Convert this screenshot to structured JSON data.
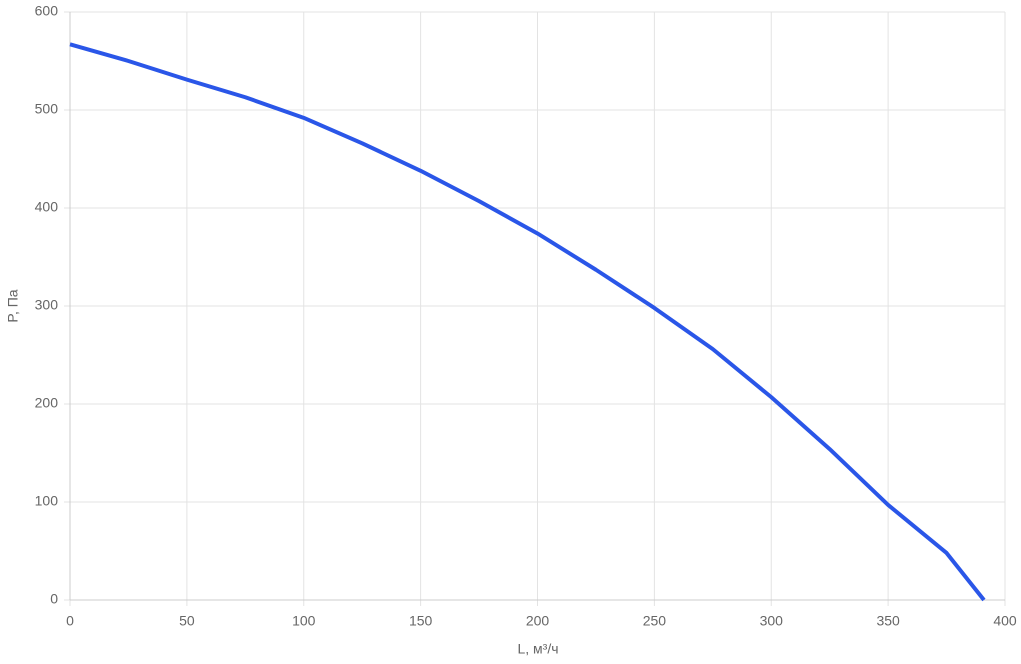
{
  "chart_data": {
    "type": "line",
    "x_label": "L, м³/ч",
    "y_label": "P, Па",
    "x": [
      0,
      25,
      50,
      75,
      100,
      125,
      150,
      175,
      200,
      225,
      250,
      275,
      300,
      325,
      350,
      375,
      391
    ],
    "series": [
      {
        "color": "#2a56e8",
        "values": [
          567,
          550,
          531,
          513,
          492,
          466,
          438,
          407,
          374,
          337,
          298,
          256,
          207,
          154,
          97,
          48,
          0
        ]
      }
    ],
    "xlim": [
      0,
      400
    ],
    "xticks": [
      0,
      50,
      100,
      150,
      200,
      250,
      300,
      350,
      400
    ],
    "ylim": [
      0,
      600
    ],
    "yticks": [
      0,
      100,
      200,
      300,
      400,
      500,
      600
    ],
    "grid": true
  }
}
